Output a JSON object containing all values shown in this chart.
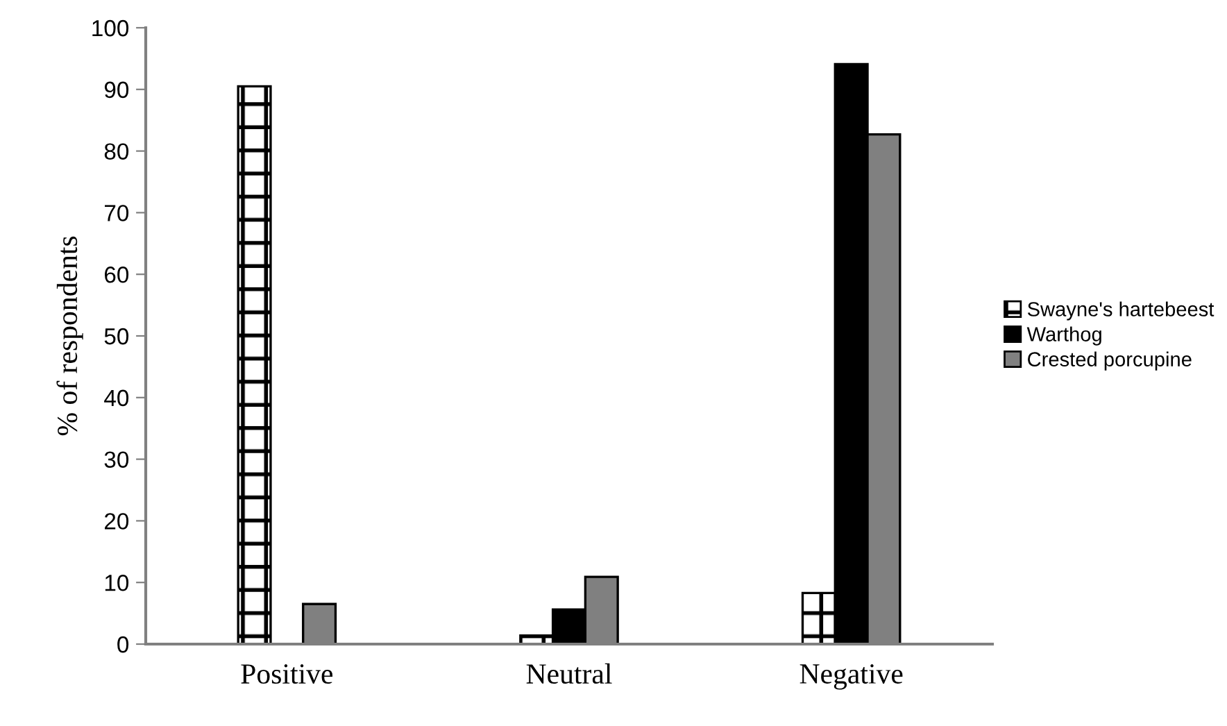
{
  "chart_data": {
    "type": "bar",
    "ylabel": "% of respondents",
    "categories": [
      "Positive",
      "Neutral",
      "Negative"
    ],
    "series": [
      {
        "name": "Swayne's hartebeest",
        "color": "#000000",
        "values": [
          90.5,
          1.4,
          8.3
        ]
      },
      {
        "name": "Warthog",
        "color": "#000000",
        "values": [
          0,
          5.6,
          94.1
        ]
      },
      {
        "name": "Crested porcupine",
        "color": "#808080",
        "values": [
          6.5,
          10.9,
          82.7
        ]
      }
    ],
    "ylim": [
      0,
      100
    ],
    "yticks": [
      0,
      10,
      20,
      30,
      40,
      50,
      60,
      70,
      80,
      90,
      100
    ],
    "grid": false,
    "legend": "right"
  }
}
